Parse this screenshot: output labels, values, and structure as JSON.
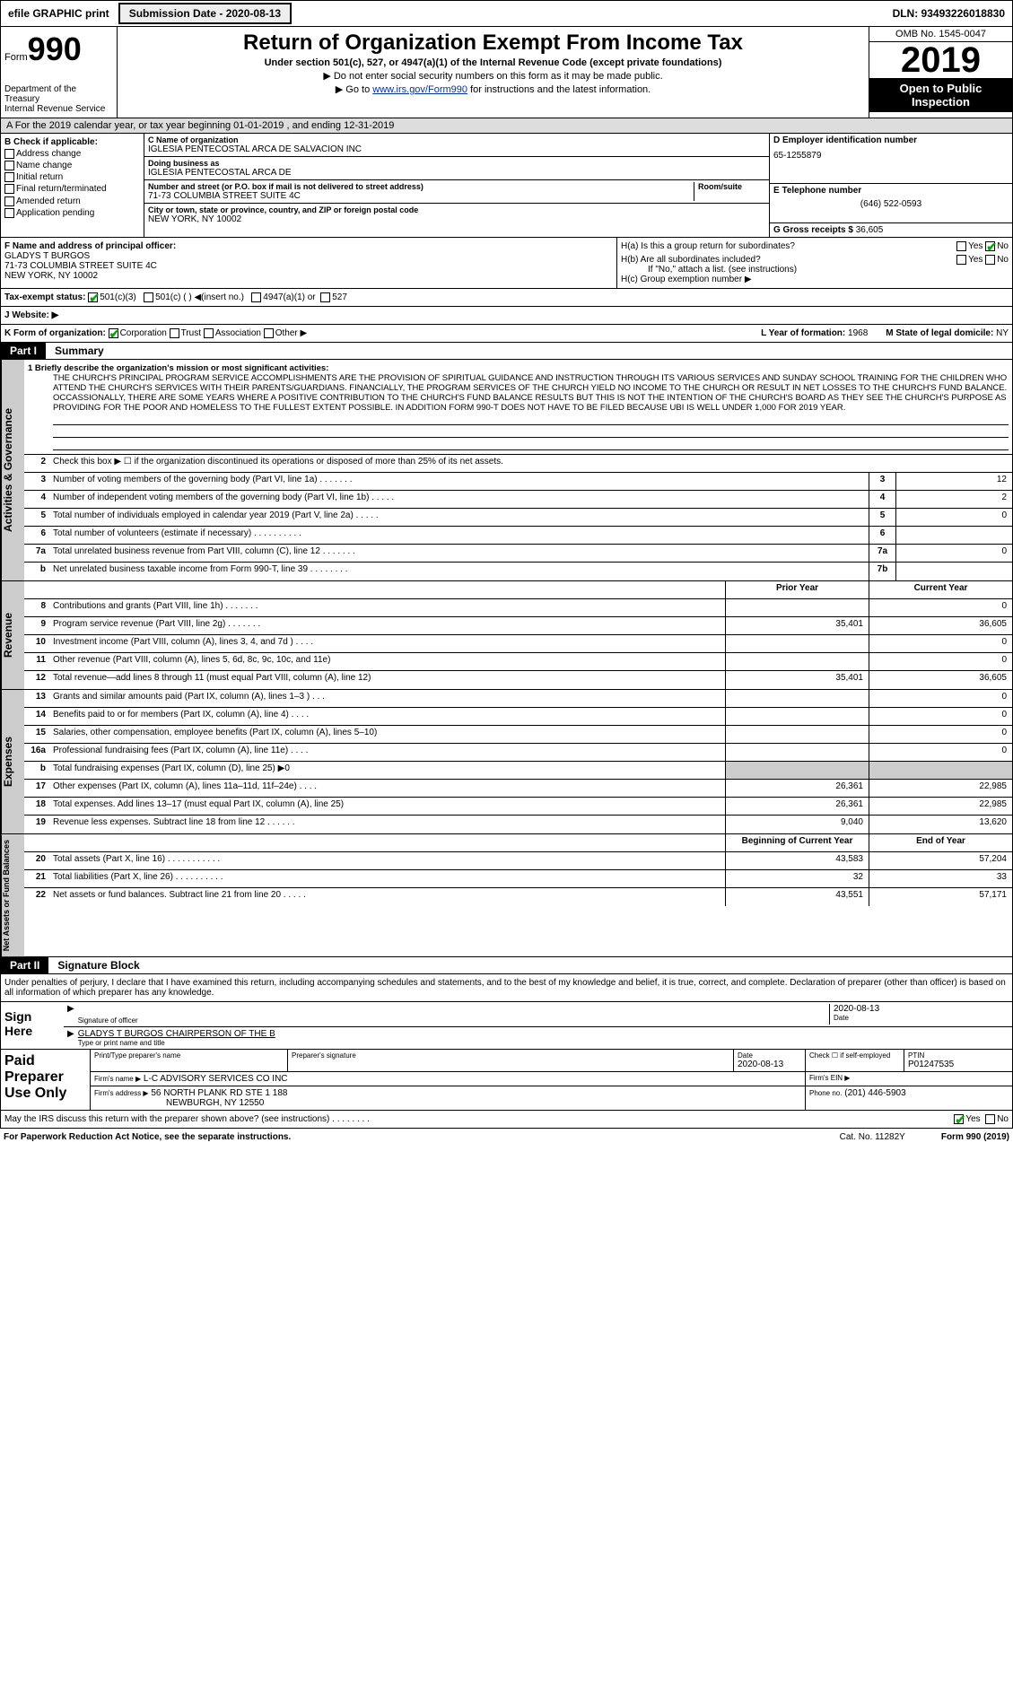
{
  "topbar": {
    "efile": "efile GRAPHIC print",
    "submission_label": "Submission Date - 2020-08-13",
    "dln": "DLN: 93493226018830"
  },
  "header": {
    "form_label": "Form",
    "form_num": "990",
    "dept": "Department of the Treasury\nInternal Revenue Service",
    "title": "Return of Organization Exempt From Income Tax",
    "sub": "Under section 501(c), 527, or 4947(a)(1) of the Internal Revenue Code (except private foundations)",
    "arrow1": "▶ Do not enter social security numbers on this form as it may be made public.",
    "arrow2_pre": "▶ Go to ",
    "arrow2_link": "www.irs.gov/Form990",
    "arrow2_post": " for instructions and the latest information.",
    "omb": "OMB No. 1545-0047",
    "year": "2019",
    "inspect": "Open to Public Inspection"
  },
  "period": "A   For the 2019 calendar year, or tax year beginning 01-01-2019   , and ending 12-31-2019",
  "colB": {
    "lbl": "B Check if applicable:",
    "items": [
      "Address change",
      "Name change",
      "Initial return",
      "Final return/terminated",
      "Amended return",
      "Application pending"
    ]
  },
  "colC": {
    "name_lbl": "C Name of organization",
    "name": "IGLESIA PENTECOSTAL ARCA DE SALVACION INC",
    "dba_lbl": "Doing business as",
    "dba": "IGLESIA PENTECOSTAL ARCA DE",
    "addr_lbl": "Number and street (or P.O. box if mail is not delivered to street address)",
    "addr": "71-73 COLUMBIA STREET SUITE 4C",
    "room_lbl": "Room/suite",
    "city_lbl": "City or town, state or province, country, and ZIP or foreign postal code",
    "city": "NEW YORK, NY  10002"
  },
  "colD": {
    "ein_lbl": "D Employer identification number",
    "ein": "65-1255879",
    "phone_lbl": "E Telephone number",
    "phone": "(646) 522-0593",
    "gross_lbl": "G Gross receipts $",
    "gross": "36,605"
  },
  "rowF": {
    "lbl": "F  Name and address of principal officer:",
    "name": "GLADYS T BURGOS",
    "addr": "71-73 COLUMBIA STREET SUITE 4C",
    "city": "NEW YORK, NY  10002"
  },
  "rowH": {
    "ha": "H(a)  Is this a group return for subordinates?",
    "hb": "H(b)  Are all subordinates included?",
    "hb_note": "If \"No,\" attach a list. (see instructions)",
    "hc": "H(c)  Group exemption number ▶"
  },
  "taxexempt": {
    "lbl": "Tax-exempt status:",
    "opts": [
      "501(c)(3)",
      "501(c) (  ) ◀(insert no.)",
      "4947(a)(1) or",
      "527"
    ]
  },
  "website_lbl": "J   Website: ▶",
  "kRow": {
    "lbl": "K Form of organization:",
    "opts": [
      "Corporation",
      "Trust",
      "Association",
      "Other ▶"
    ],
    "l_lbl": "L Year of formation:",
    "l_val": "1968",
    "m_lbl": "M State of legal domicile:",
    "m_val": "NY"
  },
  "part1": {
    "num": "Part I",
    "title": "Summary"
  },
  "mission_lbl": "1  Briefly describe the organization's mission or most significant activities:",
  "mission": "THE CHURCH'S PRINCIPAL PROGRAM SERVICE ACCOMPLISHMENTS ARE THE PROVISION OF SPIRITUAL GUIDANCE AND INSTRUCTION THROUGH ITS VARIOUS SERVICES AND SUNDAY SCHOOL TRAINING FOR THE CHILDREN WHO ATTEND THE CHURCH'S SERVICES WITH THEIR PARENTS/GUARDIANS. FINANCIALLY, THE PROGRAM SERVICES OF THE CHURCH YIELD NO INCOME TO THE CHURCH OR RESULT IN NET LOSSES TO THE CHURCH'S FUND BALANCE. OCCASSIONALLY, THERE ARE SOME YEARS WHERE A POSITIVE CONTRIBUTION TO THE CHURCH'S FUND BALANCE RESULTS BUT THIS IS NOT THE INTENTION OF THE CHURCH'S BOARD AS THEY SEE THE CHURCH'S PURPOSE AS PROVIDING FOR THE POOR AND HOMELESS TO THE FULLEST EXTENT POSSIBLE. IN ADDITION FORM 990-T DOES NOT HAVE TO BE FILED BECAUSE UBI IS WELL UNDER 1,000 FOR 2019 YEAR.",
  "line2": "Check this box ▶ ☐ if the organization discontinued its operations or disposed of more than 25% of its net assets.",
  "side_gov": "Activities & Governance",
  "side_rev": "Revenue",
  "side_exp": "Expenses",
  "side_net": "Net Assets or Fund Balances",
  "rows_gov": [
    {
      "n": "3",
      "d": "Number of voting members of the governing body (Part VI, line 1a)  .    .    .    .    .    .    .",
      "b": "3",
      "v": "12"
    },
    {
      "n": "4",
      "d": "Number of independent voting members of the governing body (Part VI, line 1b)  .    .    .    .    .",
      "b": "4",
      "v": "2"
    },
    {
      "n": "5",
      "d": "Total number of individuals employed in calendar year 2019 (Part V, line 2a)  .    .    .    .    .",
      "b": "5",
      "v": "0"
    },
    {
      "n": "6",
      "d": "Total number of volunteers (estimate if necessary)  .    .    .    .    .    .    .    .    .    .",
      "b": "6",
      "v": ""
    },
    {
      "n": "7a",
      "d": "Total unrelated business revenue from Part VIII, column (C), line 12  .    .    .    .    .    .    .",
      "b": "7a",
      "v": "0"
    },
    {
      "n": "b",
      "d": "Net unrelated business taxable income from Form 990-T, line 39  .    .    .    .    .    .    .    .",
      "b": "7b",
      "v": ""
    }
  ],
  "hdr_prior": "Prior Year",
  "hdr_curr": "Current Year",
  "rows_rev": [
    {
      "n": "8",
      "d": "Contributions and grants (Part VIII, line 1h)  .    .    .    .    .    .    .",
      "p": "",
      "c": "0"
    },
    {
      "n": "9",
      "d": "Program service revenue (Part VIII, line 2g)  .    .    .    .    .    .    .",
      "p": "35,401",
      "c": "36,605"
    },
    {
      "n": "10",
      "d": "Investment income (Part VIII, column (A), lines 3, 4, and 7d )  .    .    .    .",
      "p": "",
      "c": "0"
    },
    {
      "n": "11",
      "d": "Other revenue (Part VIII, column (A), lines 5, 6d, 8c, 9c, 10c, and 11e)",
      "p": "",
      "c": "0"
    },
    {
      "n": "12",
      "d": "Total revenue—add lines 8 through 11 (must equal Part VIII, column (A), line 12)",
      "p": "35,401",
      "c": "36,605"
    }
  ],
  "rows_exp": [
    {
      "n": "13",
      "d": "Grants and similar amounts paid (Part IX, column (A), lines 1–3 )  .    .    .",
      "p": "",
      "c": "0"
    },
    {
      "n": "14",
      "d": "Benefits paid to or for members (Part IX, column (A), line 4)  .    .    .    .",
      "p": "",
      "c": "0"
    },
    {
      "n": "15",
      "d": "Salaries, other compensation, employee benefits (Part IX, column (A), lines 5–10)",
      "p": "",
      "c": "0"
    },
    {
      "n": "16a",
      "d": "Professional fundraising fees (Part IX, column (A), line 11e)  .    .    .    .",
      "p": "",
      "c": "0"
    },
    {
      "n": "b",
      "d": "Total fundraising expenses (Part IX, column (D), line 25) ▶0",
      "p": "shade",
      "c": "shade"
    },
    {
      "n": "17",
      "d": "Other expenses (Part IX, column (A), lines 11a–11d, 11f–24e)  .    .    .    .",
      "p": "26,361",
      "c": "22,985"
    },
    {
      "n": "18",
      "d": "Total expenses. Add lines 13–17 (must equal Part IX, column (A), line 25)",
      "p": "26,361",
      "c": "22,985"
    },
    {
      "n": "19",
      "d": "Revenue less expenses. Subtract line 18 from line 12  .    .    .    .    .    .",
      "p": "9,040",
      "c": "13,620"
    }
  ],
  "hdr_beg": "Beginning of Current Year",
  "hdr_end": "End of Year",
  "rows_net": [
    {
      "n": "20",
      "d": "Total assets (Part X, line 16)  .    .    .    .    .    .    .    .    .    .    .",
      "p": "43,583",
      "c": "57,204"
    },
    {
      "n": "21",
      "d": "Total liabilities (Part X, line 26)  .    .    .    .    .    .    .    .    .    .",
      "p": "32",
      "c": "33"
    },
    {
      "n": "22",
      "d": "Net assets or fund balances. Subtract line 21 from line 20  .    .    .    .    .",
      "p": "43,551",
      "c": "57,171"
    }
  ],
  "part2": {
    "num": "Part II",
    "title": "Signature Block"
  },
  "declare": "Under penalties of perjury, I declare that I have examined this return, including accompanying schedules and statements, and to the best of my knowledge and belief, it is true, correct, and complete. Declaration of preparer (other than officer) is based on all information of which preparer has any knowledge.",
  "sign": {
    "lbl": "Sign Here",
    "sig_lbl": "Signature of officer",
    "date_lbl": "Date",
    "date": "2020-08-13",
    "name": "GLADYS T BURGOS CHAIRPERSON OF THE B",
    "name_lbl": "Type or print name and title"
  },
  "prep": {
    "lbl": "Paid Preparer Use Only",
    "h1": "Print/Type preparer's name",
    "h2": "Preparer's signature",
    "h3": "Date",
    "date": "2020-08-13",
    "h4": "Check ☐ if self-employed",
    "h5": "PTIN",
    "ptin": "P01247535",
    "firm_lbl": "Firm's name  ▶",
    "firm": "L-C ADVISORY SERVICES CO INC",
    "ein_lbl": "Firm's EIN ▶",
    "addr_lbl": "Firm's address ▶",
    "addr": "56 NORTH PLANK RD STE 1 188",
    "city": "NEWBURGH, NY  12550",
    "phone_lbl": "Phone no.",
    "phone": "(201) 446-5903"
  },
  "footer": {
    "q": "May the IRS discuss this return with the preparer shown above? (see instructions)  .    .    .    .    .    .    .    .",
    "yes": "Yes",
    "no": "No"
  },
  "bottom": {
    "left": "For Paperwork Reduction Act Notice, see the separate instructions.",
    "mid": "Cat. No. 11282Y",
    "right": "Form 990 (2019)"
  }
}
